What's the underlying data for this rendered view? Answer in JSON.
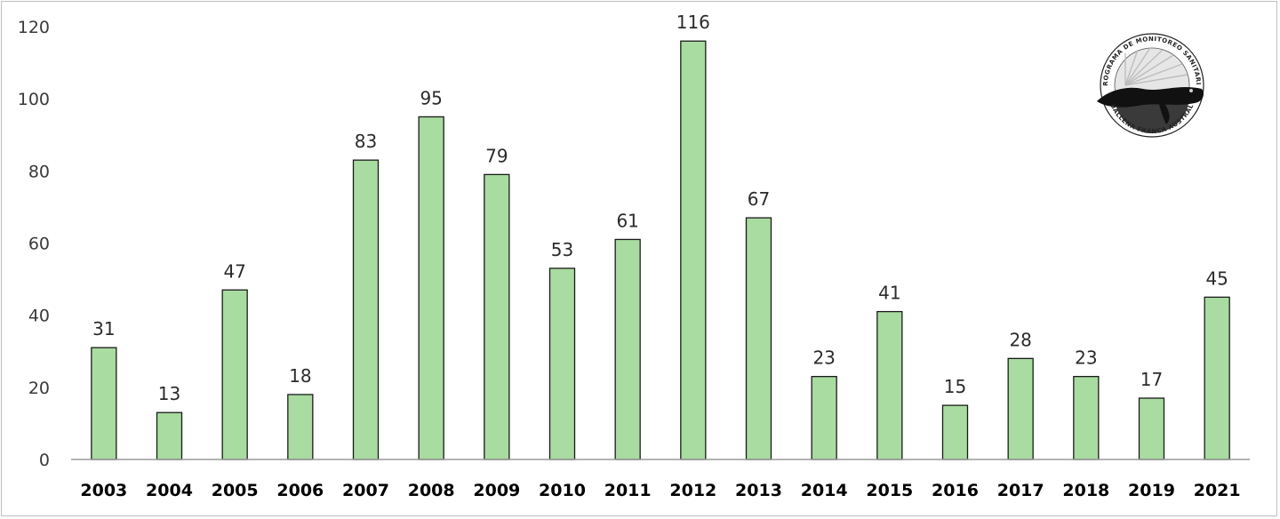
{
  "chart_data": {
    "type": "bar",
    "categories": [
      "2003",
      "2004",
      "2005",
      "2006",
      "2007",
      "2008",
      "2009",
      "2010",
      "2011",
      "2012",
      "2013",
      "2014",
      "2015",
      "2016",
      "2017",
      "2018",
      "2019",
      "2021"
    ],
    "values": [
      31,
      13,
      47,
      18,
      83,
      95,
      79,
      53,
      61,
      116,
      67,
      23,
      41,
      15,
      28,
      23,
      17,
      45
    ],
    "yticks": [
      0,
      20,
      40,
      60,
      80,
      100,
      120
    ],
    "ylim": [
      0,
      120
    ],
    "title": "",
    "xlabel": "",
    "ylabel": "",
    "grid": false,
    "legend": "none",
    "bar_fill": "#a9dca0",
    "bar_stroke": "#1a1a1a"
  },
  "logo": {
    "top_text": "PROGRAMA DE MONITOREO SANITARIO",
    "bottom_text": "BALLENA FRANCA AUSTRAL",
    "icon": "whale-logo-icon"
  }
}
